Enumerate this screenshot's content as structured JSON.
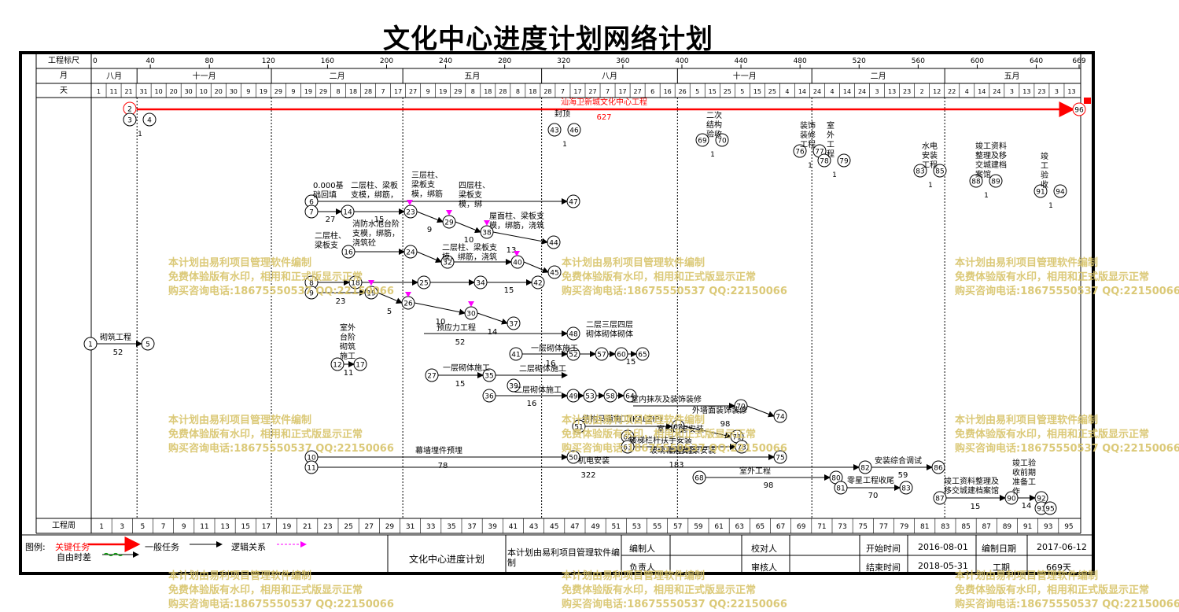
{
  "title": "文化中心进度计划网络计划",
  "scale": {
    "label": "工程标尺",
    "ticks": [
      "0",
      "40",
      "80",
      "120",
      "160",
      "200",
      "240",
      "280",
      "320",
      "360",
      "400",
      "440",
      "480",
      "520",
      "560",
      "600",
      "640",
      "669"
    ]
  },
  "months": {
    "label": "月",
    "items": [
      "八月",
      "十一月",
      "二月",
      "五月",
      "八月",
      "十一月",
      "二月",
      "五月"
    ]
  },
  "days": {
    "label": "天",
    "items": [
      "1",
      "11",
      "21",
      "31",
      "10",
      "20",
      "30",
      "10",
      "20",
      "30",
      "9",
      "19",
      "29",
      "9",
      "19",
      "29",
      "8",
      "18",
      "28",
      "7",
      "17",
      "27",
      "9",
      "19",
      "29",
      "8",
      "18",
      "28",
      "8",
      "18",
      "28",
      "7",
      "17",
      "27",
      "7",
      "17",
      "27",
      "6",
      "16",
      "26",
      "5",
      "15",
      "25",
      "5",
      "15",
      "25",
      "4",
      "14",
      "24",
      "4",
      "14",
      "24",
      "3",
      "13",
      "23",
      "2",
      "12",
      "22",
      "4",
      "14",
      "24",
      "3",
      "13",
      "23",
      "3",
      "13"
    ]
  },
  "weeks": {
    "label": "工程周",
    "items": [
      "1",
      "3",
      "5",
      "7",
      "9",
      "11",
      "13",
      "15",
      "17",
      "19",
      "21",
      "23",
      "25",
      "27",
      "29",
      "31",
      "33",
      "35",
      "37",
      "39",
      "41",
      "43",
      "45",
      "47",
      "49",
      "51",
      "53",
      "55",
      "57",
      "59",
      "61",
      "63",
      "65",
      "67",
      "69",
      "71",
      "73",
      "75",
      "77",
      "79",
      "81",
      "83",
      "85",
      "87",
      "89",
      "91",
      "93",
      "95"
    ]
  },
  "critical": {
    "label": "汕海卫新城文化中心工程",
    "duration": "627"
  },
  "tasks": [
    {
      "label": "砌筑工程",
      "duration": "52"
    },
    {
      "label": "0.000基础回填完成",
      "duration": "27"
    },
    {
      "label": "二层柱、梁板支模，绑筋，浇筑砼",
      "duration": "15"
    },
    {
      "label": "三层柱、梁板支模，绑筋，浇筑砼",
      "duration": "9"
    },
    {
      "label": "四层柱、梁板支模，绑筋，浇筑砼",
      "duration": "10"
    },
    {
      "label": "屋面柱、梁板支模，绑筋，浇筑砼",
      "duration": "13"
    },
    {
      "label": "消防水池台阶",
      "duration": "23"
    },
    {
      "label": "预应力工程",
      "duration": "52"
    },
    {
      "label": "一层砌体施工",
      "duration": "16"
    },
    {
      "label": "幕墙埋件预埋",
      "duration": "78"
    },
    {
      "label": "机电安装",
      "duration": "322"
    },
    {
      "label": "室内抹灰及装饰装修",
      "duration": ""
    },
    {
      "label": "外墙面装饰装修",
      "duration": "98"
    },
    {
      "label": "室外工程",
      "duration": "98"
    },
    {
      "label": "安装综合调试",
      "duration": "59"
    },
    {
      "label": "零星工程收尾",
      "duration": "70"
    },
    {
      "label": "竣工资料整理及移交城建档案馆",
      "duration": "15"
    },
    {
      "label": "封顶",
      "duration": "1"
    },
    {
      "label": "二次结构验收",
      "duration": "1"
    },
    {
      "label": "装饰装修工程",
      "duration": "1"
    },
    {
      "label": "室外工程",
      "duration": "1"
    },
    {
      "label": "水电安装工程",
      "duration": "1"
    },
    {
      "label": "竣工资料整理及移交城建档案馆",
      "duration": "1"
    },
    {
      "label": "竣工验收",
      "duration": "1"
    },
    {
      "label": "竣工验收前期准备工作",
      "duration": "14"
    },
    {
      "label": "幕墙骨架安装",
      "duration": "183"
    },
    {
      "label": "结构马道施工(KALZIP)",
      "duration": ""
    },
    {
      "label": "室内门窗安装",
      "duration": ""
    },
    {
      "label": "楼梯栏杆扶手安装",
      "duration": ""
    },
    {
      "label": "玻璃幕墙安装",
      "duration": ""
    }
  ],
  "watermark": [
    "本计划由易利项目管理软件编制",
    "免费体验版有水印，相用和正式版显示正常",
    "购买咨询电话:18675550537 QQ:22150066"
  ],
  "legend": {
    "label": "图例:",
    "critical": "关键任务",
    "normal": "一般任务",
    "logic": "逻辑关系",
    "float": "自由时差"
  },
  "footer": {
    "plan_name": "文化中心进度计划",
    "software": "本计划由易利项目管理软件编制",
    "editor_label": "编制人",
    "checker_label": "校对人",
    "owner_label": "负责人",
    "reviewer_label": "审核人",
    "start_label": "开始时间",
    "start": "2016-08-01",
    "end_label": "结束时间",
    "end": "2018-05-31",
    "date_label": "编制日期",
    "date": "2017-06-12",
    "duration_label": "工期",
    "duration": "669天"
  },
  "colors": {
    "critical": "#ff0000",
    "watermark": "#d8c46a",
    "logic": "#ff00ff",
    "float": "#00a000"
  }
}
